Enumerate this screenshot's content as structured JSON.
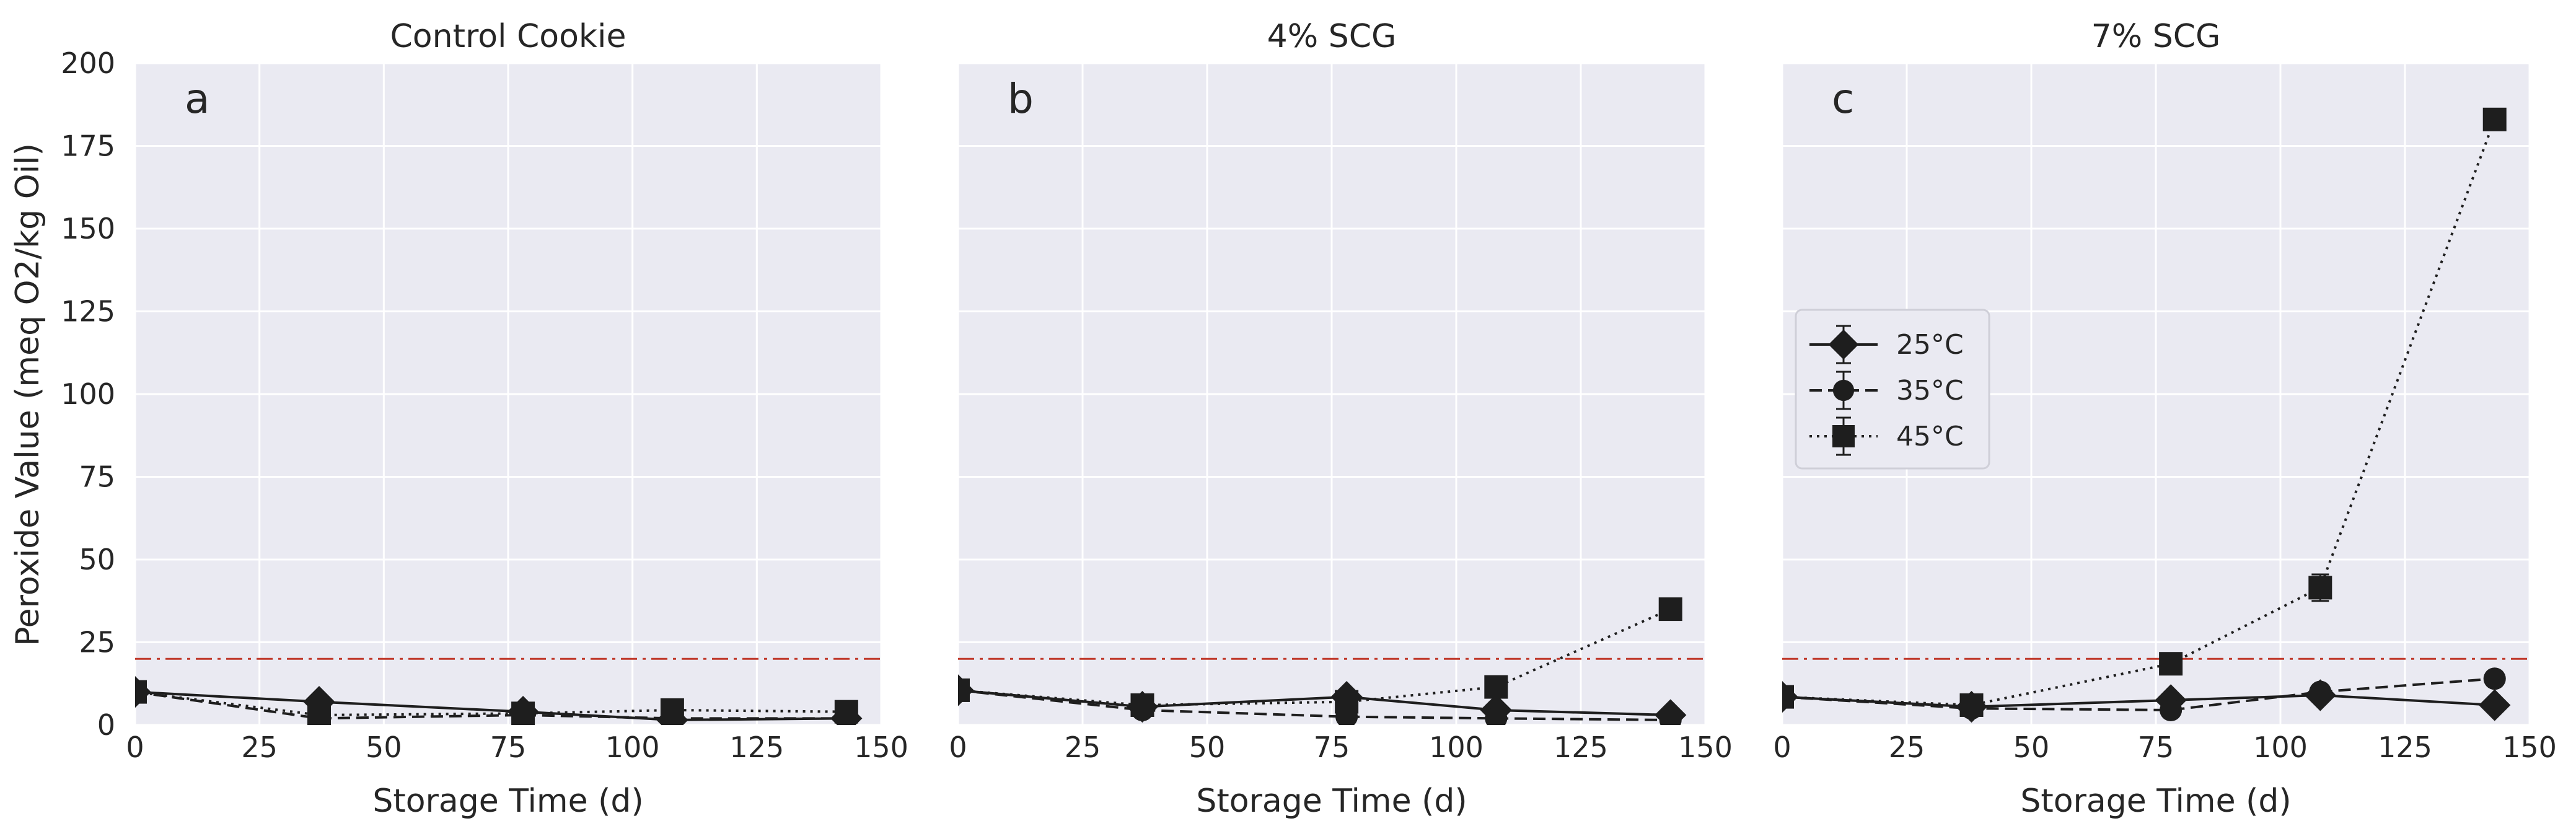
{
  "chart_data": {
    "type": "line",
    "ylabel": "Peroxide Value (meq O2/kg Oil)",
    "xlabel": "Storage Time (d)",
    "xlim": [
      0,
      150
    ],
    "ylim": [
      0,
      200
    ],
    "xticks": [
      0,
      25,
      50,
      75,
      100,
      125,
      150
    ],
    "yticks": [
      0,
      25,
      50,
      75,
      100,
      125,
      150,
      175,
      200
    ],
    "threshold": {
      "value": 20,
      "color": "#c0392b",
      "style": "dash-dot"
    },
    "legend": {
      "placement": "center-left of panel c",
      "entries": [
        {
          "label": "25°C",
          "marker": "diamond",
          "line": "solid"
        },
        {
          "label": "35°C",
          "marker": "circle",
          "line": "dashed"
        },
        {
          "label": "45°C",
          "marker": "square",
          "line": "dotted"
        }
      ]
    },
    "panels": [
      {
        "letter": "a",
        "title": "Control Cookie",
        "series": [
          {
            "name": "25°C",
            "x": [
              0,
              37,
              78,
              108,
              143
            ],
            "y": [
              10,
              7,
              4,
              1.5,
              2
            ],
            "err": [
              1,
              1,
              0.5,
              0.5,
              0.5
            ]
          },
          {
            "name": "35°C",
            "x": [
              0,
              37,
              78,
              108,
              143
            ],
            "y": [
              10,
              2,
              3,
              2,
              2
            ],
            "err": [
              1,
              0.5,
              0.5,
              0.5,
              0.5
            ]
          },
          {
            "name": "45°C",
            "x": [
              0,
              37,
              78,
              108,
              143
            ],
            "y": [
              10,
              3,
              3.5,
              4.5,
              4
            ],
            "err": [
              1,
              0.5,
              0.5,
              1,
              1
            ]
          }
        ]
      },
      {
        "letter": "b",
        "title": "4% SCG",
        "series": [
          {
            "name": "25°C",
            "x": [
              0,
              37,
              78,
              108,
              143
            ],
            "y": [
              10.5,
              5.5,
              8.5,
              4.5,
              3
            ],
            "err": [
              1,
              0.5,
              1,
              0.5,
              0.5
            ]
          },
          {
            "name": "35°C",
            "x": [
              0,
              37,
              78,
              108,
              143
            ],
            "y": [
              10.5,
              4.5,
              2.5,
              2,
              1.5
            ],
            "err": [
              1,
              0.5,
              0.5,
              0.5,
              0.5
            ]
          },
          {
            "name": "45°C",
            "x": [
              0,
              37,
              78,
              108,
              143
            ],
            "y": [
              10.5,
              6,
              7,
              11.5,
              35
            ],
            "err": [
              1,
              0.5,
              0.5,
              1,
              1.5
            ]
          }
        ]
      },
      {
        "letter": "c",
        "title": "7% SCG",
        "series": [
          {
            "name": "25°C",
            "x": [
              0,
              38,
              78,
              108,
              143
            ],
            "y": [
              8.5,
              5.5,
              7.5,
              9,
              6
            ],
            "err": [
              2.5,
              1,
              1,
              1,
              0.5
            ]
          },
          {
            "name": "35°C",
            "x": [
              0,
              38,
              78,
              108,
              143
            ],
            "y": [
              8.5,
              5,
              4.5,
              10,
              14
            ],
            "err": [
              2.5,
              1,
              0.5,
              1,
              1
            ]
          },
          {
            "name": "45°C",
            "x": [
              0,
              38,
              78,
              108,
              143
            ],
            "y": [
              8.5,
              6,
              18.5,
              41.5,
              183
            ],
            "err": [
              2.5,
              1,
              1.5,
              4,
              2
            ]
          }
        ]
      }
    ]
  }
}
